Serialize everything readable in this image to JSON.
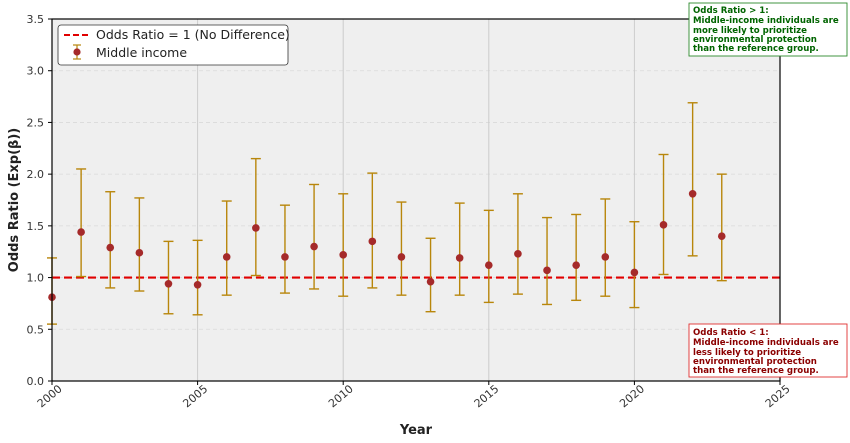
{
  "chart_data": {
    "type": "scatter",
    "title": "",
    "xlabel": "Year",
    "ylabel": "Odds Ratio (Exp(β))",
    "xlim": [
      2000,
      2025
    ],
    "ylim": [
      0,
      3.5
    ],
    "x_ticks": [
      2000,
      2005,
      2010,
      2015,
      2020,
      2025
    ],
    "y_ticks": [
      0.0,
      0.5,
      1.0,
      1.5,
      2.0,
      2.5,
      3.0,
      3.5
    ],
    "grid": true,
    "legend_position": "top-left",
    "reference_line": {
      "value": 1.0,
      "label": "Odds Ratio = 1 (No Difference)",
      "color": "#e00000"
    },
    "series": [
      {
        "name": "Middle income",
        "marker_color": "#a52a2a",
        "errorbar_color": "#b8860b",
        "points": [
          {
            "x": 2000,
            "y": 0.81,
            "lo": 0.55,
            "hi": 1.19
          },
          {
            "x": 2001,
            "y": 1.44,
            "lo": 1.01,
            "hi": 2.05
          },
          {
            "x": 2002,
            "y": 1.29,
            "lo": 0.9,
            "hi": 1.83
          },
          {
            "x": 2003,
            "y": 1.24,
            "lo": 0.87,
            "hi": 1.77
          },
          {
            "x": 2004,
            "y": 0.94,
            "lo": 0.65,
            "hi": 1.35
          },
          {
            "x": 2005,
            "y": 0.93,
            "lo": 0.64,
            "hi": 1.36
          },
          {
            "x": 2006,
            "y": 1.2,
            "lo": 0.83,
            "hi": 1.74
          },
          {
            "x": 2007,
            "y": 1.48,
            "lo": 1.02,
            "hi": 2.15
          },
          {
            "x": 2008,
            "y": 1.2,
            "lo": 0.85,
            "hi": 1.7
          },
          {
            "x": 2009,
            "y": 1.3,
            "lo": 0.89,
            "hi": 1.9
          },
          {
            "x": 2010,
            "y": 1.22,
            "lo": 0.82,
            "hi": 1.81
          },
          {
            "x": 2011,
            "y": 1.35,
            "lo": 0.9,
            "hi": 2.01
          },
          {
            "x": 2012,
            "y": 1.2,
            "lo": 0.83,
            "hi": 1.73
          },
          {
            "x": 2013,
            "y": 0.96,
            "lo": 0.67,
            "hi": 1.38
          },
          {
            "x": 2014,
            "y": 1.19,
            "lo": 0.83,
            "hi": 1.72
          },
          {
            "x": 2015,
            "y": 1.12,
            "lo": 0.76,
            "hi": 1.65
          },
          {
            "x": 2016,
            "y": 1.23,
            "lo": 0.84,
            "hi": 1.81
          },
          {
            "x": 2017,
            "y": 1.07,
            "lo": 0.74,
            "hi": 1.58
          },
          {
            "x": 2018,
            "y": 1.12,
            "lo": 0.78,
            "hi": 1.61
          },
          {
            "x": 2019,
            "y": 1.2,
            "lo": 0.82,
            "hi": 1.76
          },
          {
            "x": 2020,
            "y": 1.05,
            "lo": 0.71,
            "hi": 1.54
          },
          {
            "x": 2021,
            "y": 1.51,
            "lo": 1.03,
            "hi": 2.19
          },
          {
            "x": 2022,
            "y": 1.81,
            "lo": 1.21,
            "hi": 2.69
          },
          {
            "x": 2023,
            "y": 1.4,
            "lo": 0.97,
            "hi": 2.0
          }
        ]
      }
    ],
    "annotations": [
      {
        "name": "annotation-above",
        "lines": [
          "Odds Ratio > 1:",
          "Middle-income individuals are",
          "more likely to prioritize",
          "environmental protection",
          "than the reference group."
        ],
        "color": "#006400",
        "border": "#2e8b2e"
      },
      {
        "name": "annotation-below",
        "lines": [
          "Odds Ratio < 1:",
          "Middle-income individuals are",
          "less likely to prioritize",
          "environmental protection",
          "than the reference group."
        ],
        "color": "#8b0000",
        "border": "#e03030"
      }
    ]
  }
}
